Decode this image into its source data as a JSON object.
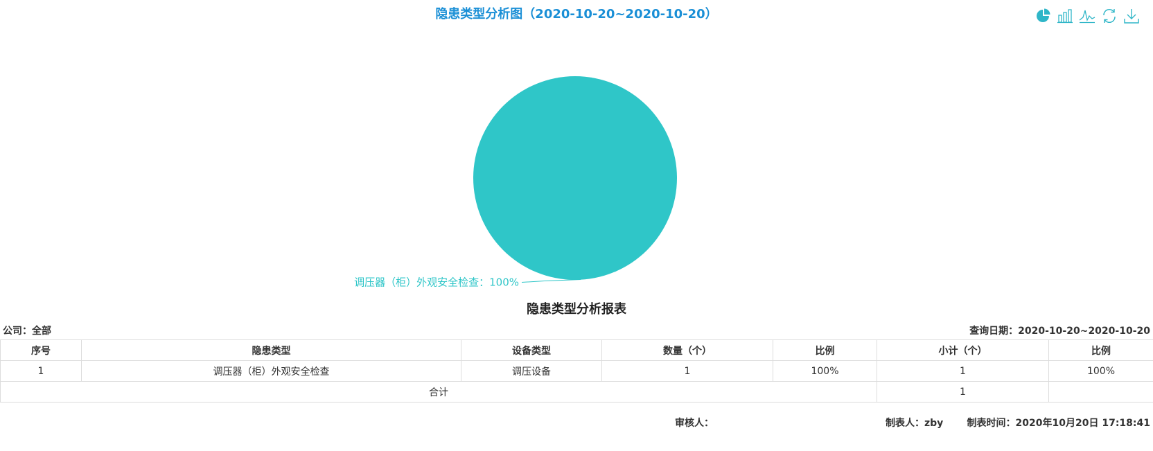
{
  "chart_title": "隐患类型分析图（2020-10-20~2020-10-20）",
  "toolbox": {
    "icons": [
      "pie-chart-icon",
      "bar-chart-icon",
      "line-chart-icon",
      "refresh-icon",
      "download-icon"
    ],
    "color": "#2fb6c8"
  },
  "chart_data": {
    "type": "pie",
    "series": [
      {
        "data": [
          {
            "name": "调压器（柜）外观安全检查",
            "value": 1,
            "percent": "100%"
          }
        ]
      }
    ],
    "slice_label": "调压器（柜）外观安全检查：100%",
    "colors": [
      "#2fc6c8"
    ]
  },
  "report": {
    "title": "隐患类型分析报表",
    "company_label": "公司：",
    "company_value": "全部",
    "query_date_label": "查询日期：",
    "query_date_value": "2020-10-20~2020-10-20",
    "columns": [
      "序号",
      "隐患类型",
      "设备类型",
      "数量（个）",
      "比例",
      "小计（个）",
      "比例"
    ],
    "rows": [
      [
        "1",
        "调压器（柜）外观安全检查",
        "调压设备",
        "1",
        "100%",
        "1",
        "100%"
      ]
    ],
    "total_label": "合计",
    "total_value": "1",
    "total_ratio": ""
  },
  "footer": {
    "reviewer_label": "审核人：",
    "reviewer_value": "",
    "maker_label": "制表人：",
    "maker_value": "zby",
    "time_label": "制表时间：",
    "time_value": "2020年10月20日 17:18:41"
  }
}
